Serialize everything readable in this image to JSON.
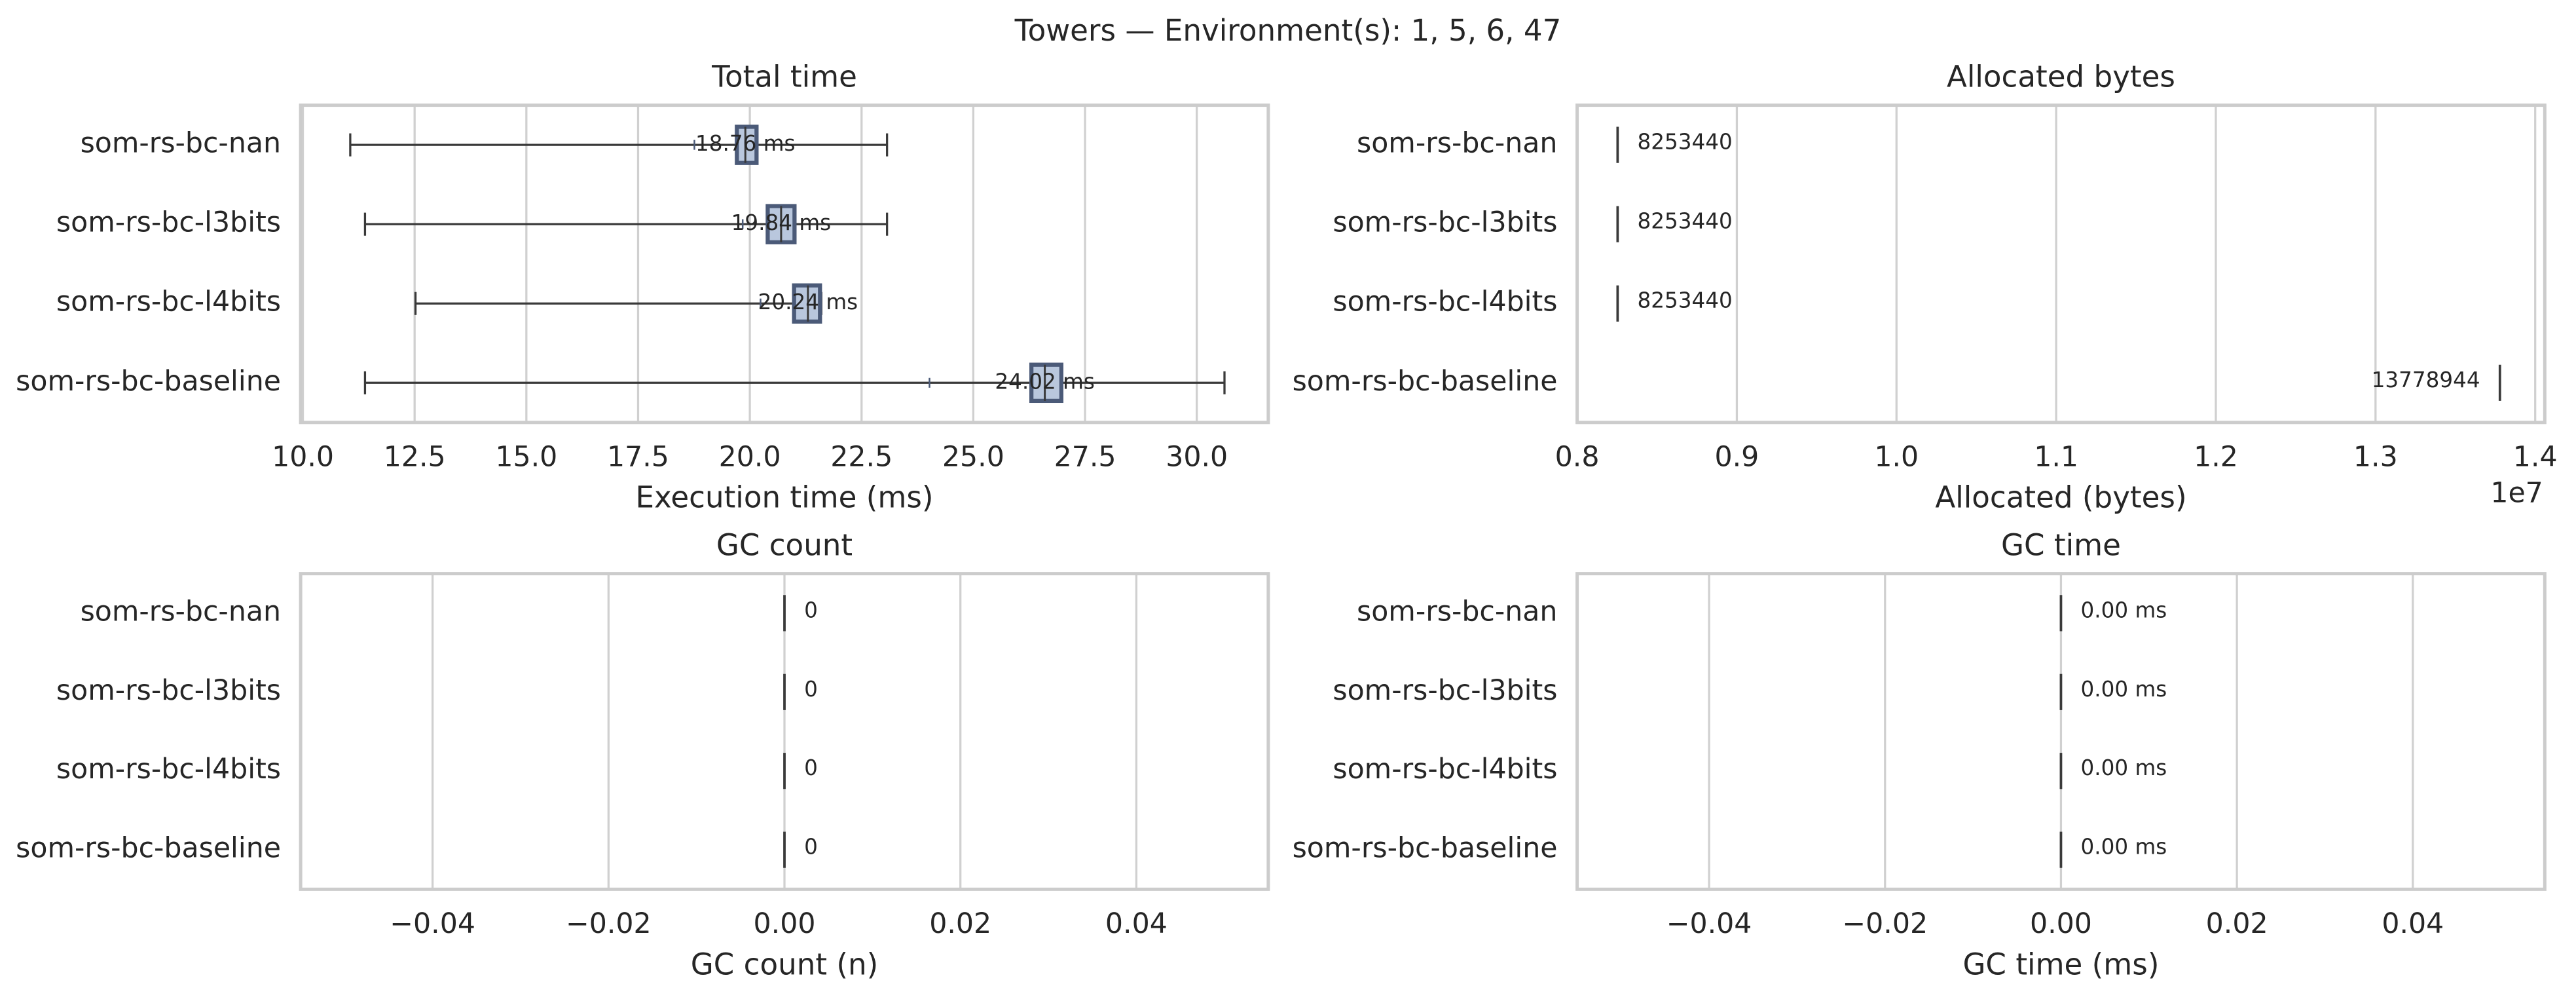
{
  "title": "Towers — Environment(s): 1, 5, 6, 47",
  "chart_data": [
    {
      "type": "box",
      "title": "Total time",
      "xlabel": "Execution time (ms)",
      "categories": [
        "som-rs-bc-nan",
        "som-rs-bc-l3bits",
        "som-rs-bc-l4bits",
        "som-rs-bc-baseline"
      ],
      "whisker_low": [
        11.06,
        11.39,
        12.52,
        11.39
      ],
      "q1": [
        19.71,
        20.4,
        20.99,
        26.3
      ],
      "median": [
        19.9,
        20.7,
        21.3,
        26.6
      ],
      "q3": [
        20.15,
        21.0,
        21.57,
        26.97
      ],
      "whisker_high": [
        23.07,
        23.07,
        21.6,
        30.62
      ],
      "values": [
        18.76,
        19.84,
        20.24,
        24.02
      ],
      "value_labels": [
        "18.76 ms",
        "19.84 ms",
        "20.24 ms",
        "24.02 ms"
      ],
      "color": "#b9c7dd",
      "edge_color": "#4b5a78",
      "xlim": [
        9.95,
        31.6
      ],
      "xticks": [
        {
          "value": 10,
          "label": "10.0"
        },
        12.5,
        {
          "value": 15,
          "label": "15.0"
        },
        17.5,
        {
          "value": 20,
          "label": "20.0"
        },
        22.5,
        {
          "value": 25,
          "label": "25.0"
        },
        27.5,
        {
          "value": 30,
          "label": "30.0"
        }
      ],
      "grid": true
    },
    {
      "type": "box",
      "title": "Allocated bytes",
      "xlabel": "Allocated (bytes)",
      "offset_text": "1e7",
      "categories": [
        "som-rs-bc-nan",
        "som-rs-bc-l3bits",
        "som-rs-bc-l4bits",
        "som-rs-bc-baseline"
      ],
      "values": [
        8253440,
        8253440,
        8253440,
        13778944
      ],
      "color": "#b9c7dd",
      "edge_color": "#4b5a78",
      "xlim": [
        8000000,
        14060000
      ],
      "xticks": [
        {
          "value": 8000000,
          "label": "0.8"
        },
        {
          "value": 9000000,
          "label": "0.9"
        },
        {
          "value": 10000000,
          "label": "1.0"
        },
        {
          "value": 11000000,
          "label": "1.1"
        },
        {
          "value": 12000000,
          "label": "1.2"
        },
        {
          "value": 13000000,
          "label": "1.3"
        },
        {
          "value": 14000000,
          "label": "1.4"
        }
      ],
      "grid": true
    },
    {
      "type": "box",
      "title": "GC count",
      "xlabel": "GC count (n)",
      "categories": [
        "som-rs-bc-nan",
        "som-rs-bc-l3bits",
        "som-rs-bc-l4bits",
        "som-rs-bc-baseline"
      ],
      "values": [
        0,
        0,
        0,
        0
      ],
      "color": "#b9c7dd",
      "edge_color": "#4b5a78",
      "xlim": [
        -0.055,
        0.055
      ],
      "xticks": [
        {
          "value": -0.04,
          "label": "−0.04"
        },
        {
          "value": -0.02,
          "label": "−0.02"
        },
        {
          "value": 0,
          "label": "0.00"
        },
        0.02,
        0.04
      ],
      "grid": true
    },
    {
      "type": "box",
      "title": "GC time",
      "xlabel": "GC time (ms)",
      "categories": [
        "som-rs-bc-nan",
        "som-rs-bc-l3bits",
        "som-rs-bc-l4bits",
        "som-rs-bc-baseline"
      ],
      "values": [
        0,
        0,
        0,
        0
      ],
      "value_labels": [
        "0.00 ms",
        "0.00 ms",
        "0.00 ms",
        "0.00 ms"
      ],
      "color": "#b9c7dd",
      "edge_color": "#4b5a78",
      "xlim": [
        -0.055,
        0.055
      ],
      "xticks": [
        {
          "value": -0.04,
          "label": "−0.04"
        },
        {
          "value": -0.02,
          "label": "−0.02"
        },
        {
          "value": 0,
          "label": "0.00"
        },
        0.02,
        0.04
      ],
      "grid": true
    }
  ]
}
